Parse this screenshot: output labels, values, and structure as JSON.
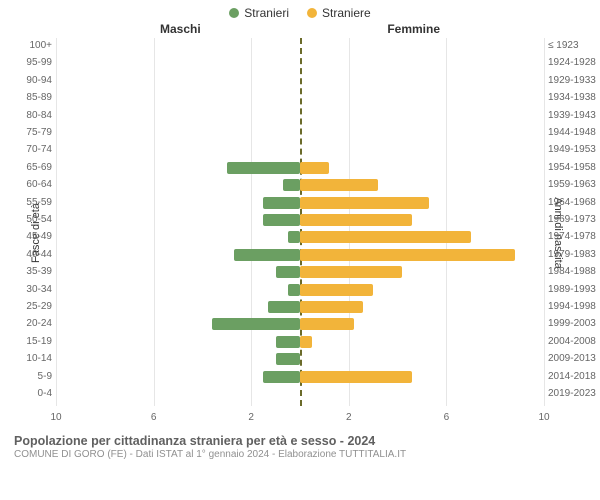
{
  "legend": {
    "male": {
      "label": "Stranieri",
      "color": "#6b9f62"
    },
    "female": {
      "label": "Straniere",
      "color": "#f2b43a"
    }
  },
  "side_titles": {
    "left": "Maschi",
    "right": "Femmine"
  },
  "axis_titles": {
    "left": "Fasce di età",
    "right": "Anni di nascita"
  },
  "xaxis": {
    "min": -10,
    "max": 10,
    "ticks_left": [
      10,
      6,
      2
    ],
    "ticks_right": [
      2,
      6,
      10
    ]
  },
  "grid": {
    "color": "#e6e6e6"
  },
  "center_line_color": "#6b6b2a",
  "row_height": 17.4,
  "bar_radius": 2,
  "rows": [
    {
      "age": "100+",
      "birth": "≤ 1923",
      "m": 0,
      "f": 0
    },
    {
      "age": "95-99",
      "birth": "1924-1928",
      "m": 0,
      "f": 0
    },
    {
      "age": "90-94",
      "birth": "1929-1933",
      "m": 0,
      "f": 0
    },
    {
      "age": "85-89",
      "birth": "1934-1938",
      "m": 0,
      "f": 0
    },
    {
      "age": "80-84",
      "birth": "1939-1943",
      "m": 0,
      "f": 0
    },
    {
      "age": "75-79",
      "birth": "1944-1948",
      "m": 0,
      "f": 0
    },
    {
      "age": "70-74",
      "birth": "1949-1953",
      "m": 0,
      "f": 0
    },
    {
      "age": "65-69",
      "birth": "1954-1958",
      "m": 3.0,
      "f": 1.2
    },
    {
      "age": "60-64",
      "birth": "1959-1963",
      "m": 0.7,
      "f": 3.2
    },
    {
      "age": "55-59",
      "birth": "1964-1968",
      "m": 1.5,
      "f": 5.3
    },
    {
      "age": "50-54",
      "birth": "1969-1973",
      "m": 1.5,
      "f": 4.6
    },
    {
      "age": "45-49",
      "birth": "1974-1978",
      "m": 0.5,
      "f": 7.0
    },
    {
      "age": "40-44",
      "birth": "1979-1983",
      "m": 2.7,
      "f": 8.8
    },
    {
      "age": "35-39",
      "birth": "1984-1988",
      "m": 1.0,
      "f": 4.2
    },
    {
      "age": "30-34",
      "birth": "1989-1993",
      "m": 0.5,
      "f": 3.0
    },
    {
      "age": "25-29",
      "birth": "1994-1998",
      "m": 1.3,
      "f": 2.6
    },
    {
      "age": "20-24",
      "birth": "1999-2003",
      "m": 3.6,
      "f": 2.2
    },
    {
      "age": "15-19",
      "birth": "2004-2008",
      "m": 1.0,
      "f": 0.5
    },
    {
      "age": "10-14",
      "birth": "2009-2013",
      "m": 1.0,
      "f": 0
    },
    {
      "age": "5-9",
      "birth": "2014-2018",
      "m": 1.5,
      "f": 4.6
    },
    {
      "age": "0-4",
      "birth": "2019-2023",
      "m": 0,
      "f": 0
    }
  ],
  "footer": {
    "title": "Popolazione per cittadinanza straniera per età e sesso - 2024",
    "subtitle": "COMUNE DI GORO (FE) - Dati ISTAT al 1° gennaio 2024 - Elaborazione TUTTITALIA.IT"
  }
}
